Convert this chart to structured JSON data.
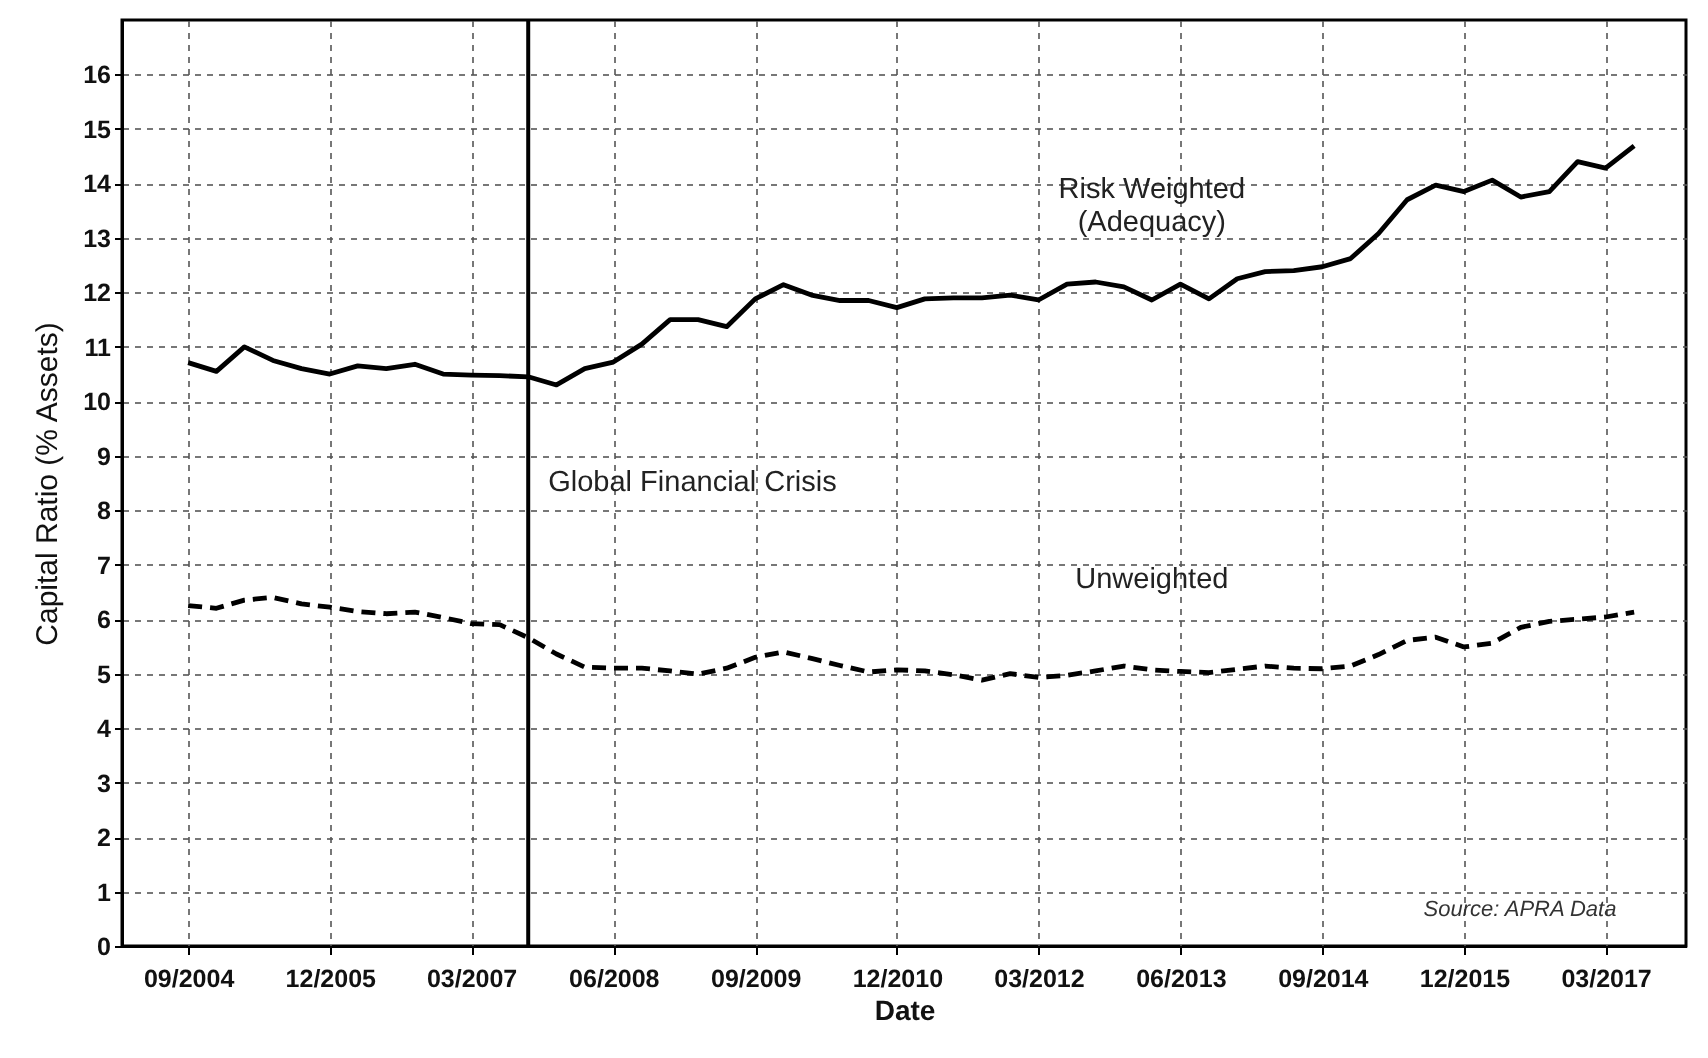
{
  "chart_data": {
    "type": "line",
    "xlabel": "Date",
    "ylabel": "Capital Ratio (% Assets)",
    "x": [
      "2004-09",
      "2004-12",
      "2005-03",
      "2005-06",
      "2005-09",
      "2005-12",
      "2006-03",
      "2006-06",
      "2006-09",
      "2006-12",
      "2007-03",
      "2007-06",
      "2007-09",
      "2007-12",
      "2008-03",
      "2008-06",
      "2008-09",
      "2008-12",
      "2009-03",
      "2009-06",
      "2009-09",
      "2009-12",
      "2010-03",
      "2010-06",
      "2010-09",
      "2010-12",
      "2011-03",
      "2011-06",
      "2011-09",
      "2011-12",
      "2012-03",
      "2012-06",
      "2012-09",
      "2012-12",
      "2013-03",
      "2013-06",
      "2013-09",
      "2013-12",
      "2014-03",
      "2014-06",
      "2014-09",
      "2014-12",
      "2015-03",
      "2015-06",
      "2015-09",
      "2015-12",
      "2016-03",
      "2016-06",
      "2016-09",
      "2016-12",
      "2017-03",
      "2017-06"
    ],
    "series": [
      {
        "name": "Risk Weighted (Adequacy)",
        "color": "#000000",
        "line_style": "solid",
        "values": [
          10.71,
          10.55,
          11.0,
          10.75,
          10.6,
          10.5,
          10.65,
          10.6,
          10.68,
          10.5,
          10.48,
          10.47,
          10.45,
          10.3,
          10.6,
          10.72,
          11.05,
          11.5,
          11.5,
          11.37,
          11.88,
          12.14,
          11.95,
          11.85,
          11.85,
          11.72,
          11.88,
          11.9,
          11.9,
          11.95,
          11.86,
          12.15,
          12.19,
          12.1,
          11.86,
          12.15,
          11.88,
          12.25,
          12.38,
          12.4,
          12.47,
          12.62,
          13.08,
          13.7,
          13.97,
          13.85,
          14.06,
          13.75,
          13.85,
          14.4,
          14.28,
          14.69
        ]
      },
      {
        "name": "Unweighted",
        "color": "#000000",
        "line_style": "dashed",
        "values": [
          6.25,
          6.2,
          6.35,
          6.4,
          6.28,
          6.22,
          6.14,
          6.1,
          6.13,
          6.03,
          5.92,
          5.9,
          5.66,
          5.36,
          5.12,
          5.1,
          5.1,
          5.05,
          4.99,
          5.1,
          5.3,
          5.4,
          5.28,
          5.15,
          5.03,
          5.07,
          5.05,
          4.98,
          4.88,
          5.0,
          4.93,
          4.97,
          5.05,
          5.14,
          5.07,
          5.04,
          5.02,
          5.08,
          5.14,
          5.1,
          5.09,
          5.14,
          5.35,
          5.61,
          5.67,
          5.49,
          5.56,
          5.85,
          5.96,
          6.0,
          6.04,
          6.13
        ]
      }
    ],
    "xlim": [
      "2004-02-01",
      "2017-11-15"
    ],
    "xticks": [
      {
        "value": "2004-09",
        "label": "09/2004"
      },
      {
        "value": "2005-12",
        "label": "12/2005"
      },
      {
        "value": "2007-03",
        "label": "03/2007"
      },
      {
        "value": "2008-06",
        "label": "06/2008"
      },
      {
        "value": "2009-09",
        "label": "09/2009"
      },
      {
        "value": "2010-12",
        "label": "12/2010"
      },
      {
        "value": "2012-03",
        "label": "03/2012"
      },
      {
        "value": "2013-06",
        "label": "06/2013"
      },
      {
        "value": "2014-09",
        "label": "09/2014"
      },
      {
        "value": "2015-12",
        "label": "12/2015"
      },
      {
        "value": "2017-03",
        "label": "03/2017"
      }
    ],
    "ylim": [
      0,
      17
    ],
    "yticks": [
      0,
      1,
      2,
      3,
      4,
      5,
      6,
      7,
      8,
      9,
      10,
      11,
      12,
      13,
      14,
      15,
      16
    ],
    "grid": true,
    "marker": "none",
    "ref_lines": [
      {
        "axis": "x",
        "value": "2007-09",
        "label": "Global Financial Crisis",
        "color": "#000000"
      }
    ],
    "annotations": [
      "Source: APRA Data"
    ]
  }
}
